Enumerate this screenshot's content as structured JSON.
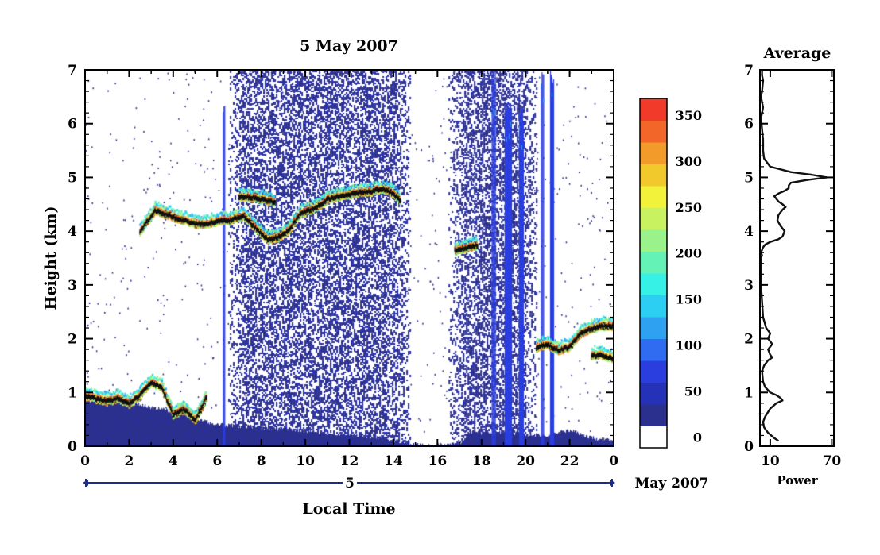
{
  "chart_data": [
    {
      "type": "heatmap",
      "title": "5 May 2007",
      "xlabel": "Local Time",
      "ylabel": "Height (km)",
      "x_tick_labels": [
        "0",
        "2",
        "4",
        "6",
        "8",
        "10",
        "12",
        "14",
        "16",
        "18",
        "20",
        "22",
        "0"
      ],
      "xlim": [
        0,
        24
      ],
      "y_tick_labels": [
        "0",
        "1",
        "2",
        "3",
        "4",
        "5",
        "6",
        "7"
      ],
      "ylim": [
        0,
        7
      ],
      "date_axis": {
        "day_label": "5",
        "month_label": "May 2007"
      },
      "colorbar": {
        "tick_labels": [
          "0",
          "50",
          "100",
          "150",
          "200",
          "250",
          "300",
          "350"
        ],
        "range": [
          0,
          380
        ],
        "colors": [
          "#ffffff",
          "#2b2f8e",
          "#2531b6",
          "#2a3ee0",
          "#2f6cf2",
          "#2ea2f0",
          "#2ccff2",
          "#36f2e6",
          "#64f2b7",
          "#9af28a",
          "#c8f25f",
          "#f2f23a",
          "#f2c92c",
          "#f29a2a",
          "#f2662a",
          "#f23a2a"
        ]
      },
      "features": [
        {
          "type": "noise_region",
          "x_range": [
            6.5,
            14.8
          ],
          "y_range": [
            0,
            7
          ],
          "value": 30
        },
        {
          "type": "noise_region",
          "x_range": [
            16.5,
            20.5
          ],
          "y_range": [
            0,
            7
          ],
          "value": 30
        },
        {
          "type": "surface_layer",
          "x": [
            0,
            2,
            4,
            6,
            8,
            10,
            12,
            13.5,
            14,
            15.5,
            17,
            17.5,
            19,
            20,
            21,
            22,
            23,
            24
          ],
          "top": [
            0.85,
            0.8,
            0.65,
            0.4,
            0.35,
            0.28,
            0.2,
            0.15,
            0.1,
            0,
            0.05,
            0.25,
            0.25,
            0.22,
            0.2,
            0.3,
            0.15,
            0.1
          ]
        },
        {
          "type": "cloud_layer",
          "points": [
            [
              0,
              0.95
            ],
            [
              0.5,
              0.9
            ],
            [
              1,
              0.85
            ],
            [
              1.5,
              0.9
            ],
            [
              2,
              0.8
            ],
            [
              2.5,
              0.95
            ],
            [
              3,
              1.2
            ],
            [
              3.5,
              1.1
            ],
            [
              4,
              0.6
            ],
            [
              4.5,
              0.7
            ],
            [
              5,
              0.5
            ],
            [
              5.5,
              0.9
            ]
          ]
        },
        {
          "type": "cloud_layer",
          "points": [
            [
              2.5,
              4.0
            ],
            [
              3.2,
              4.4
            ],
            [
              4.2,
              4.25
            ],
            [
              5.0,
              4.15
            ],
            [
              5.5,
              4.15
            ],
            [
              6.0,
              4.2
            ],
            [
              6.5,
              4.2
            ],
            [
              7.2,
              4.3
            ],
            [
              7.8,
              4.05
            ],
            [
              8.3,
              3.85
            ],
            [
              8.8,
              3.9
            ],
            [
              9.3,
              4.05
            ],
            [
              9.8,
              4.35
            ],
            [
              10.5,
              4.45
            ],
            [
              11.0,
              4.6
            ],
            [
              12.0,
              4.7
            ],
            [
              13.0,
              4.75
            ],
            [
              13.6,
              4.8
            ],
            [
              14.0,
              4.7
            ],
            [
              14.3,
              4.6
            ]
          ]
        },
        {
          "type": "cloud_layer",
          "points": [
            [
              7.0,
              4.65
            ],
            [
              7.5,
              4.65
            ],
            [
              8.0,
              4.6
            ],
            [
              8.6,
              4.55
            ]
          ]
        },
        {
          "type": "cloud_layer",
          "points": [
            [
              16.8,
              3.65
            ],
            [
              17.3,
              3.7
            ],
            [
              17.8,
              3.75
            ]
          ]
        },
        {
          "type": "cloud_layer",
          "points": [
            [
              20.5,
              1.85
            ],
            [
              21.0,
              1.9
            ],
            [
              21.5,
              1.8
            ],
            [
              22.0,
              1.85
            ],
            [
              22.5,
              2.1
            ],
            [
              23.0,
              2.2
            ],
            [
              23.5,
              2.25
            ],
            [
              24.0,
              2.25
            ]
          ]
        },
        {
          "type": "cloud_layer",
          "points": [
            [
              23.0,
              1.7
            ],
            [
              23.5,
              1.7
            ],
            [
              24.0,
              1.65
            ]
          ]
        },
        {
          "type": "precip_column",
          "x_center": 18.55,
          "width": 0.18,
          "y_top": 7
        },
        {
          "type": "precip_column",
          "x_center": 19.2,
          "width": 0.3,
          "y_top": 6.5
        },
        {
          "type": "precip_column",
          "x_center": 19.8,
          "width": 0.2,
          "y_top": 6.3
        },
        {
          "type": "precip_column",
          "x_center": 20.75,
          "width": 0.12,
          "y_top": 7
        },
        {
          "type": "precip_column",
          "x_center": 21.2,
          "width": 0.18,
          "y_top": 7
        },
        {
          "type": "precip_column",
          "x_center": 6.3,
          "width": 0.1,
          "y_top": 6.5
        }
      ]
    },
    {
      "type": "line",
      "title": "Average",
      "xlabel": "Power",
      "ylabel": "",
      "x_tick_labels": [
        "10",
        "70"
      ],
      "y_tick_labels": [
        "0",
        "1",
        "2",
        "3",
        "4",
        "5",
        "6",
        "7"
      ],
      "xlim": [
        0,
        72
      ],
      "ylim": [
        0,
        7
      ],
      "series": [
        {
          "x": [
            18,
            14,
            8,
            4,
            3,
            5,
            10,
            16,
            22,
            20,
            16,
            10,
            5,
            3,
            2,
            4,
            8,
            12,
            10,
            8,
            12,
            8,
            10,
            6,
            3,
            2,
            1,
            1,
            1,
            1,
            2,
            1,
            2,
            3,
            5,
            10,
            18,
            22,
            24,
            20,
            17,
            18,
            22,
            25,
            22,
            18,
            16,
            14,
            18,
            24,
            28,
            28,
            30,
            45,
            65,
            50,
            30,
            10,
            4,
            3,
            3,
            2,
            1,
            2,
            3,
            2,
            1,
            2,
            3,
            2,
            2
          ],
          "y": [
            0.1,
            0.15,
            0.25,
            0.35,
            0.45,
            0.55,
            0.7,
            0.8,
            0.85,
            0.9,
            0.95,
            1.0,
            1.1,
            1.2,
            1.4,
            1.5,
            1.6,
            1.65,
            1.7,
            1.8,
            1.9,
            2.0,
            2.1,
            2.2,
            2.4,
            2.7,
            3.0,
            3.3,
            3.45,
            3.5,
            3.55,
            3.6,
            3.65,
            3.7,
            3.75,
            3.8,
            3.85,
            3.9,
            4.0,
            4.1,
            4.2,
            4.3,
            4.4,
            4.45,
            4.5,
            4.55,
            4.6,
            4.65,
            4.7,
            4.75,
            4.8,
            4.85,
            4.9,
            4.95,
            5.0,
            5.05,
            5.1,
            5.2,
            5.35,
            5.5,
            5.7,
            5.9,
            6.1,
            6.2,
            6.3,
            6.4,
            6.5,
            6.6,
            6.8,
            6.9,
            7.0
          ]
        }
      ]
    }
  ]
}
